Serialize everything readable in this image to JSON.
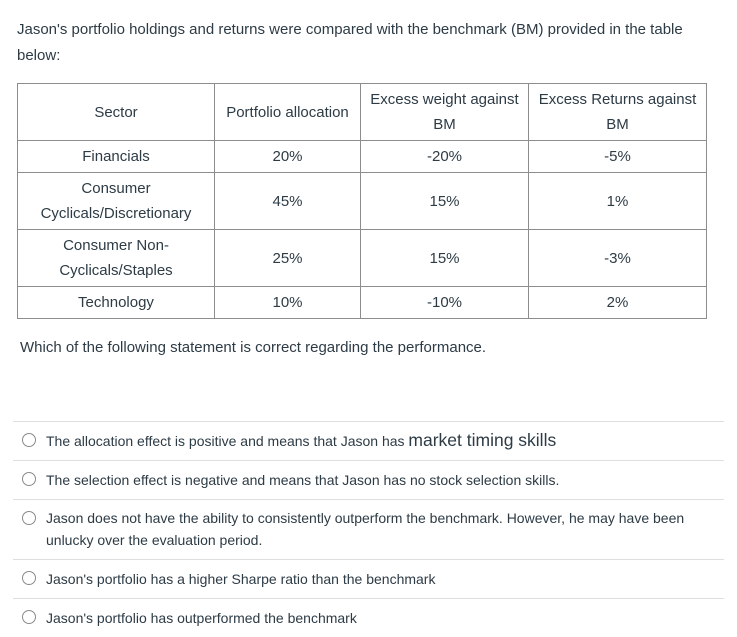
{
  "intro": "Jason's portfolio holdings and returns were compared with the benchmark (BM) provided in the table below:",
  "table": {
    "headers": {
      "sector": "Sector",
      "allocation": "Portfolio allocation",
      "excess_weight": "Excess weight against BM",
      "excess_returns": "Excess Returns against BM"
    },
    "rows": [
      {
        "sector": "Financials",
        "allocation": "20%",
        "excess_weight": "-20%",
        "excess_returns": "-5%"
      },
      {
        "sector": "Consumer Cyclicals/Discretionary",
        "allocation": "45%",
        "excess_weight": "15%",
        "excess_returns": "1%"
      },
      {
        "sector": "Consumer Non-Cyclicals/Staples",
        "allocation": "25%",
        "excess_weight": "15%",
        "excess_returns": "-3%"
      },
      {
        "sector": "Technology",
        "allocation": "10%",
        "excess_weight": "-10%",
        "excess_returns": "2%"
      }
    ]
  },
  "question": "Which of the following statement is correct regarding the performance.",
  "options": [
    {
      "text": "The allocation effect is positive and means that Jason has ",
      "text_large": "market timing skills"
    },
    {
      "text": "The selection effect is negative and means that Jason has no stock selection skills.",
      "text_large": ""
    },
    {
      "text": "Jason does not have the ability to consistently outperform the benchmark. However, he may have been unlucky over the evaluation period.",
      "text_large": ""
    },
    {
      "text": "Jason's portfolio has a higher Sharpe ratio than the benchmark",
      "text_large": ""
    },
    {
      "text": "Jason's portfolio has outperformed the benchmark",
      "text_large": ""
    }
  ],
  "colors": {
    "text": "#2d3b45",
    "table_border": "#8d8d8d",
    "divider": "#dedede",
    "radio_border": "#8a8a8a"
  }
}
